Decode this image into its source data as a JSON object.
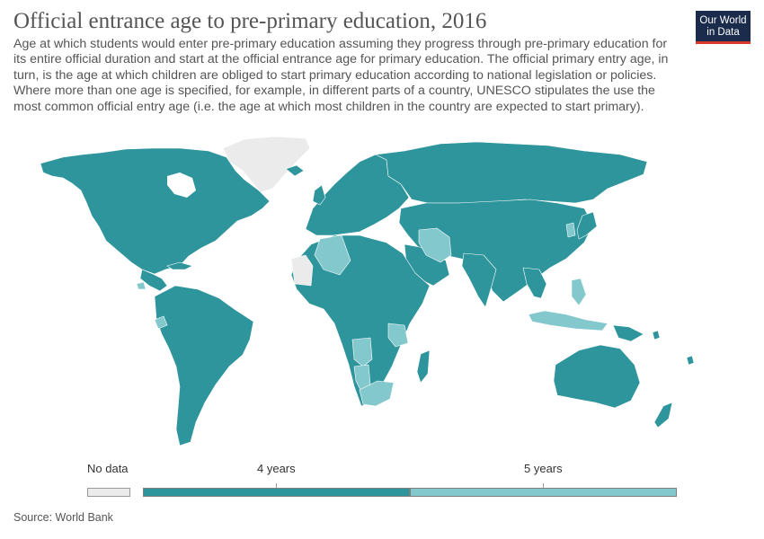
{
  "header": {
    "title": "Official entrance age to pre-primary education, 2016",
    "subtitle": "Age at which students would enter pre-primary education assuming they progress through pre-primary education for its entire official duration and start at the official entrance age for primary education. The official primary entry age, in turn, is the age at which children are obliged to start primary education according to national legislation or policies. Where more than one age is specified, for example, in different parts of a country, UNESCO stipulates the use the most common official entry age (i.e. the age at which most children in the country are expected to start primary)."
  },
  "logo": {
    "line1": "Our World",
    "line2": "in Data"
  },
  "legend": {
    "no_data_label": "No data",
    "bins": [
      {
        "label": "4 years",
        "value": 4,
        "color": "#2e959c"
      },
      {
        "label": "5 years",
        "value": 5,
        "color": "#83c8cc"
      }
    ],
    "no_data_color": "#ebebeb"
  },
  "map_colors": {
    "four_years": "#2e959c",
    "five_years": "#83c8cc",
    "no_data": "#ebebeb",
    "border": "#ffffff"
  },
  "source": "Source: World Bank"
}
